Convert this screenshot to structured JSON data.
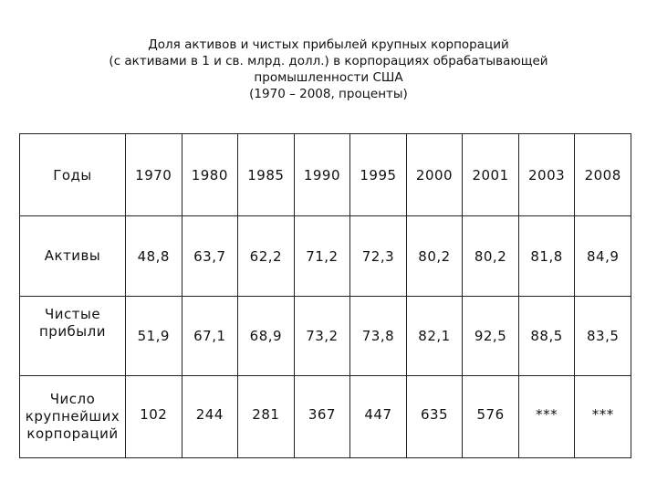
{
  "title": {
    "lines": [
      "Доля активов и чистых прибылей крупных корпораций",
      "(с активами в 1 и св. млрд. долл.) в корпорациях обрабатывающей",
      "промышленности США",
      "(1970 – 2008, проценты)"
    ]
  },
  "table": {
    "header_label": "Годы",
    "years": [
      "1970",
      "1980",
      "1985",
      "1990",
      "1995",
      "2000",
      "2001",
      "2003",
      "2008"
    ],
    "rows": [
      {
        "label_lines": [
          "Активы"
        ],
        "values": [
          "48,8",
          "63,7",
          "62,2",
          "71,2",
          "72,3",
          "80,2",
          "80,2",
          "81,8",
          "84,9"
        ]
      },
      {
        "label_lines": [
          "Чистые",
          "прибыли"
        ],
        "values": [
          "51,9",
          "67,1",
          "68,9",
          "73,2",
          "73,8",
          "82,1",
          "92,5",
          "88,5",
          "83,5"
        ]
      },
      {
        "label_lines": [
          "Число",
          "крупнейших",
          "корпораций"
        ],
        "values": [
          "102",
          "244",
          "281",
          "367",
          "447",
          "635",
          "576",
          "***",
          "***"
        ]
      }
    ]
  }
}
